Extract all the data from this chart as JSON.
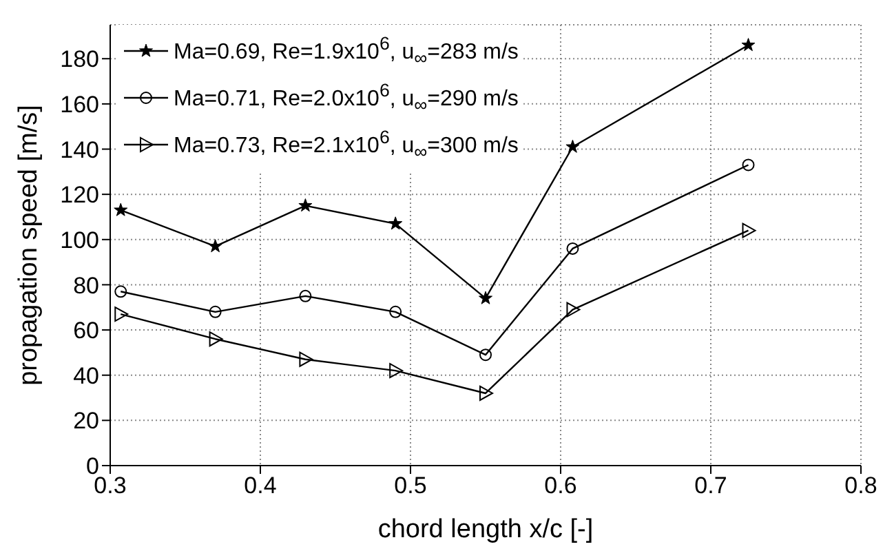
{
  "chart_data": {
    "type": "line",
    "xlabel": "chord length x/c [-]",
    "ylabel": "propagation speed [m/s]",
    "xlim": [
      0.3,
      0.8
    ],
    "xticks": [
      0.3,
      0.4,
      0.5,
      0.6,
      0.7,
      0.8
    ],
    "ylim": [
      0,
      195
    ],
    "yticks": [
      0,
      20,
      40,
      60,
      80,
      100,
      120,
      140,
      160,
      180
    ],
    "grid": true,
    "legend": "top left",
    "line_style": "solid",
    "x": [
      0.307,
      0.37,
      0.43,
      0.49,
      0.55,
      0.608,
      0.725
    ],
    "series": [
      {
        "name": "Ma=0.69, Re=1.9x10$^{6}$, u$_{∞}$=283 m/s",
        "color": "#000000",
        "marker": "star",
        "values": [
          113,
          97,
          115,
          107,
          74,
          141,
          186
        ]
      },
      {
        "name": "Ma=0.71, Re=2.0x10$^{6}$, u$_{∞}$=290 m/s",
        "color": "#000000",
        "marker": "circle",
        "values": [
          77,
          68,
          75,
          68,
          49,
          96,
          133
        ]
      },
      {
        "name": "Ma=0.73, Re=2.1x10$^{6}$, u$_{∞}$=300 m/s",
        "color": "#000000",
        "marker": "triangle",
        "values": [
          67,
          56,
          47,
          42,
          32,
          69,
          104
        ]
      }
    ]
  }
}
